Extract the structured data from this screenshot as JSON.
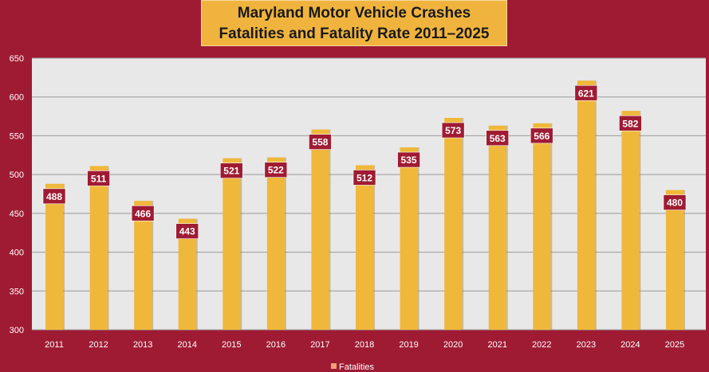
{
  "chart_data": {
    "type": "bar",
    "title": [
      "Maryland Motor Vehicle Crashes",
      "Fatalities and Fatality Rate 2011–2025"
    ],
    "categories": [
      "2011",
      "2012",
      "2013",
      "2014",
      "2015",
      "2016",
      "2017",
      "2018",
      "2019",
      "2020",
      "2021",
      "2022",
      "2023",
      "2024",
      "2025"
    ],
    "series": [
      {
        "name": "Fatalities",
        "values": [
          488,
          511,
          466,
          443,
          521,
          522,
          558,
          512,
          535,
          573,
          563,
          566,
          621,
          582,
          480
        ]
      }
    ],
    "ylim": [
      300,
      650
    ],
    "yticks": [
      300,
      350,
      400,
      450,
      500,
      550,
      600,
      650
    ],
    "grid": true,
    "legend": "bottom",
    "colors": {
      "background": "#9f1b33",
      "plot": "#e8e8e8",
      "bar": "#f0b83a",
      "label_box": "#9f1b33"
    }
  }
}
